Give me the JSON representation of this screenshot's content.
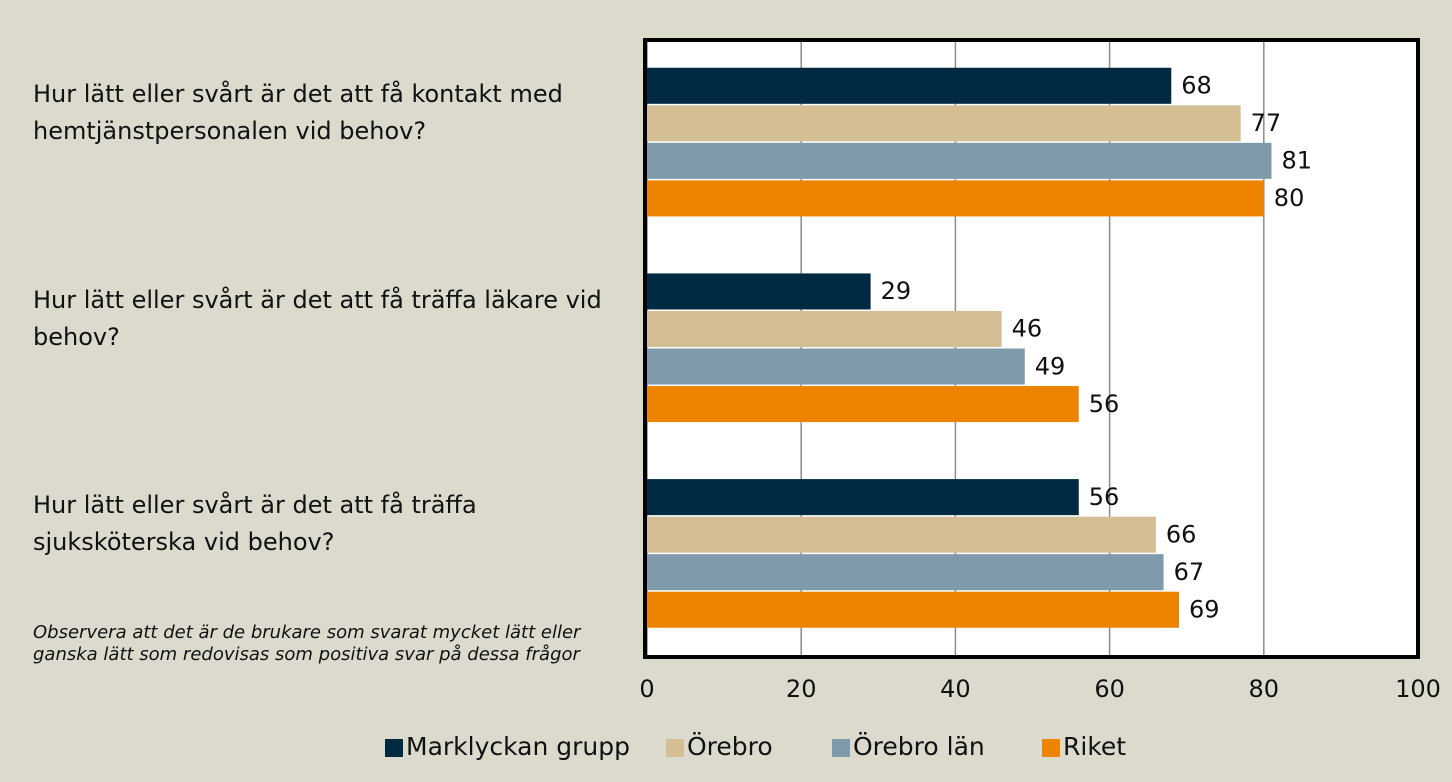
{
  "chart_data": {
    "type": "bar",
    "orientation": "horizontal",
    "categories": [
      "Hur lätt eller svårt är det att få kontakt med hemtjänstpersonalen vid behov?",
      "Hur lätt eller svårt är det att få träffa läkare vid behov?",
      "Hur lätt eller svårt är det att få träffa sjuksköterska vid behov?"
    ],
    "series": [
      {
        "name": "Marklyckan grupp",
        "color": "#002a42",
        "values": [
          68,
          29,
          56
        ]
      },
      {
        "name": "Örebro",
        "color": "#d4bf94",
        "values": [
          77,
          46,
          66
        ]
      },
      {
        "name": "Örebro län",
        "color": "#7f9bab",
        "values": [
          81,
          49,
          67
        ]
      },
      {
        "name": "Riket",
        "color": "#ec8400",
        "values": [
          80,
          56,
          69
        ]
      }
    ],
    "xlim": [
      0,
      100
    ],
    "xticks": [
      0,
      20,
      40,
      60,
      80,
      100
    ],
    "grid": true,
    "legend": "bottom",
    "note": "Observera att det är de brukare som svarat mycket lätt eller ganska lätt som redovisas som positiva svar på dessa frågor"
  }
}
